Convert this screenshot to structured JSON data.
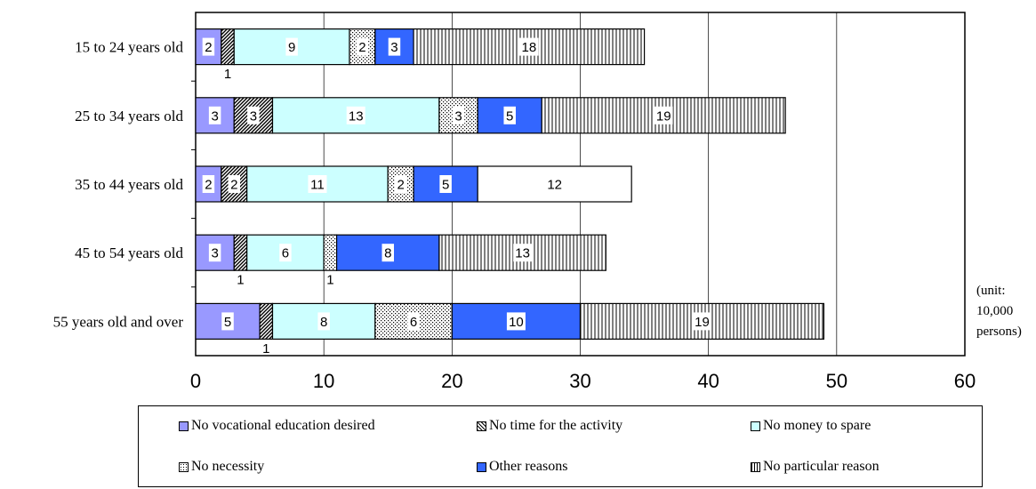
{
  "chart_data": {
    "type": "bar",
    "orientation": "horizontal",
    "stacked": true,
    "categories": [
      "15 to 24 years old",
      "25 to 34 years old",
      "35 to 44 years old",
      "45 to 54 years old",
      "55 years old and over"
    ],
    "series": [
      {
        "name": "No vocational education desired",
        "values": [
          2,
          3,
          2,
          3,
          5
        ],
        "color": "#9999ff"
      },
      {
        "name": "No time for the activity",
        "values": [
          1,
          3,
          2,
          1,
          1
        ],
        "color": "#ffffff",
        "pattern": "diagonal-hatch"
      },
      {
        "name": "No money to spare",
        "values": [
          9,
          13,
          11,
          6,
          8
        ],
        "color": "#ccffff"
      },
      {
        "name": "No necessity",
        "values": [
          2,
          3,
          2,
          1,
          6
        ],
        "color": "#ffffff",
        "pattern": "dotted"
      },
      {
        "name": "Other reasons",
        "values": [
          3,
          5,
          5,
          8,
          10
        ],
        "color": "#3366ff"
      },
      {
        "name": "No particular reason",
        "values": [
          18,
          19,
          12,
          13,
          19
        ],
        "color": "#ffffff",
        "pattern": "vertical-lines",
        "pattern_absent_for": [
          "35 to 44 years old"
        ]
      }
    ],
    "xlim": [
      0,
      60
    ],
    "x_ticks": [
      0,
      10,
      20,
      30,
      40,
      50,
      60
    ],
    "grid": "vertical",
    "legend_position": "bottom",
    "unit_note": "(unit: 10,000 persons)",
    "xlabel": "",
    "ylabel": ""
  }
}
